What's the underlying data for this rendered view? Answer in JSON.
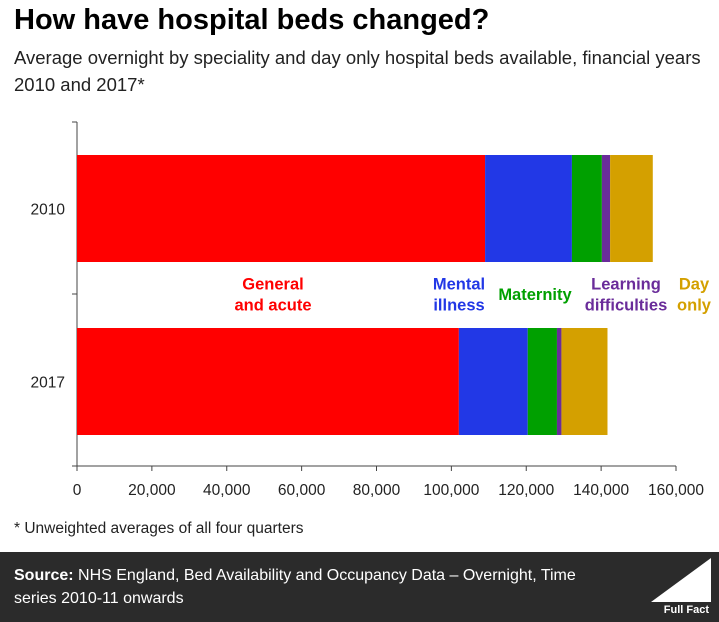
{
  "header": {
    "title": "How have hospital beds changed?",
    "subtitle": "Average overnight by speciality and day only hospital beds available, financial years 2010 and 2017*"
  },
  "footnote": "* Unweighted averages of all four quarters",
  "footer": {
    "source_label": "Source:",
    "source_text": "NHS England, Bed Availability and Occupancy Data – Overnight, Time series 2010-11 onwards",
    "logo_text": "Full Fact"
  },
  "chart_data": {
    "type": "bar",
    "orientation": "horizontal",
    "stacked": true,
    "categories": [
      "2010",
      "2017"
    ],
    "series": [
      {
        "name": "General and acute",
        "label_lines": [
          "General",
          "and acute"
        ],
        "color": "#ff0000",
        "values": [
          109000,
          102000
        ]
      },
      {
        "name": "Mental illness",
        "label_lines": [
          "Mental",
          "illness"
        ],
        "color": "#2238e6",
        "values": [
          23200,
          18400
        ]
      },
      {
        "name": "Maternity",
        "label_lines": [
          "Maternity"
        ],
        "color": "#00a000",
        "values": [
          8000,
          7800
        ]
      },
      {
        "name": "Learning difficulties",
        "label_lines": [
          "Learning",
          "difficulties"
        ],
        "color": "#6a2c9a",
        "values": [
          2200,
          1200
        ]
      },
      {
        "name": "Day only",
        "label_lines": [
          "Day",
          "only"
        ],
        "color": "#d4a000",
        "values": [
          11400,
          12300
        ]
      }
    ],
    "xlim": [
      0,
      160000
    ],
    "xticks": [
      "0",
      "20,000",
      "40,000",
      "60,000",
      "80,000",
      "100,000",
      "120,000",
      "140,000",
      "160,000"
    ],
    "grid": false,
    "legend": "inline labels between bars"
  }
}
